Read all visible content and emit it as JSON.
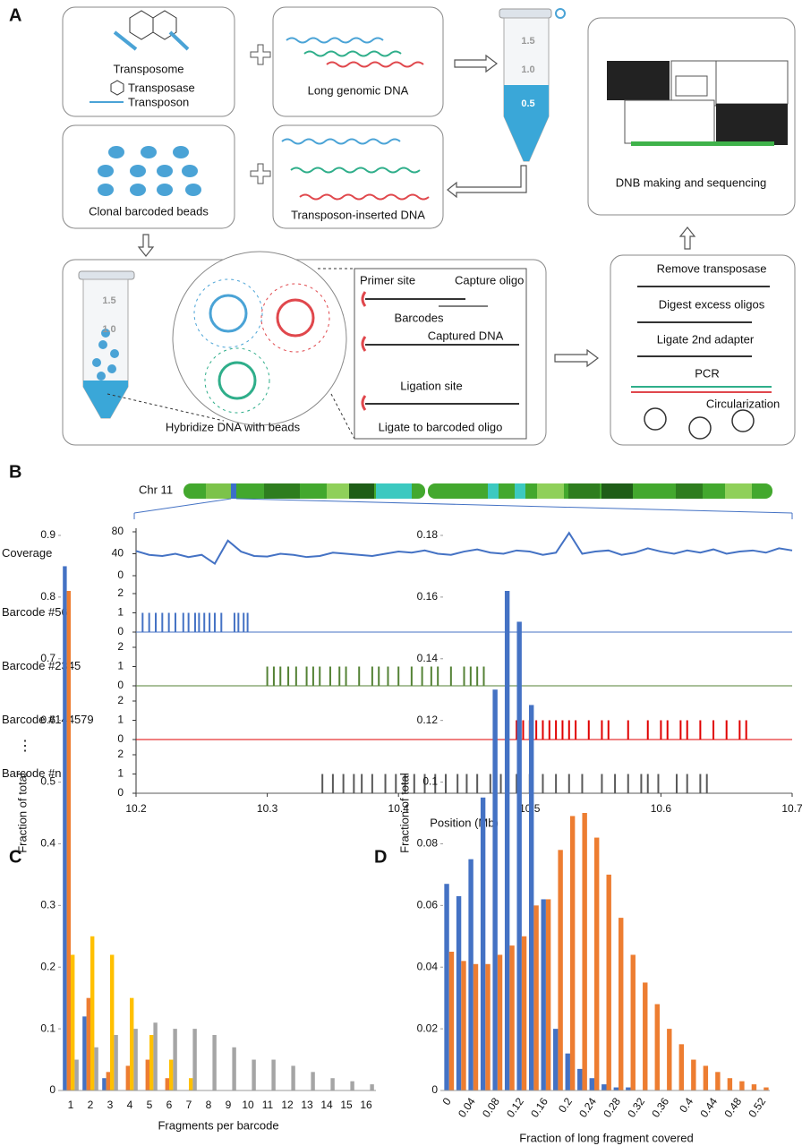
{
  "panel_labels": [
    "A",
    "B",
    "C",
    "D"
  ],
  "diagram": {
    "transposome": "Transposome",
    "transposase": "Transposase",
    "transposon": "Transposon",
    "long_dna": "Long genomic DNA",
    "tube_marks": [
      "1.5",
      "1.0",
      "0.5"
    ],
    "beads": "Clonal barcoded beads",
    "inserted_dna": "Transposon-inserted DNA",
    "sequencing": "DNB making and sequencing",
    "hybridize": "Hybridize DNA with beads",
    "zoom": [
      "Primer site",
      "Capture oligo",
      "Barcodes",
      "Captured DNA",
      "Ligation site",
      "Ligate to barcoded oligo"
    ],
    "steps": [
      "Remove transposase",
      "Digest excess oligos",
      "Ligate 2nd adapter",
      "PCR",
      "Circularization"
    ]
  },
  "chart_data": [
    {
      "type": "track",
      "chromosome": "Chr 11",
      "xlabel": "Position (Mb)",
      "xlim": [
        10.2,
        10.7
      ],
      "xticks": [
        10.2,
        10.3,
        10.4,
        10.5,
        10.6,
        10.7
      ],
      "ellipsis": "⋮",
      "series": [
        {
          "name": "Coverage",
          "color": "#4472c4",
          "style": "line",
          "ylim": [
            0,
            80
          ],
          "yticks": [
            0,
            40,
            80
          ],
          "x": [
            10.2,
            10.21,
            10.22,
            10.23,
            10.24,
            10.25,
            10.26,
            10.27,
            10.28,
            10.29,
            10.3,
            10.31,
            10.32,
            10.33,
            10.34,
            10.35,
            10.36,
            10.37,
            10.38,
            10.39,
            10.4,
            10.41,
            10.42,
            10.43,
            10.44,
            10.45,
            10.46,
            10.47,
            10.48,
            10.49,
            10.5,
            10.51,
            10.52,
            10.53,
            10.54,
            10.55,
            10.56,
            10.57,
            10.58,
            10.59,
            10.6,
            10.61,
            10.62,
            10.63,
            10.64,
            10.65,
            10.66,
            10.67,
            10.68,
            10.69,
            10.7
          ],
          "values": [
            45,
            38,
            36,
            40,
            34,
            38,
            22,
            64,
            44,
            36,
            35,
            40,
            38,
            34,
            36,
            42,
            40,
            38,
            36,
            40,
            44,
            42,
            46,
            40,
            38,
            44,
            48,
            42,
            40,
            46,
            44,
            38,
            42,
            78,
            40,
            44,
            46,
            38,
            42,
            50,
            44,
            40,
            46,
            42,
            48,
            40,
            44,
            46,
            42,
            50,
            46
          ]
        },
        {
          "name": "Barcode #56",
          "color": "#4472c4",
          "style": "ticks",
          "ylim": [
            0,
            2
          ],
          "yticks": [
            0,
            1,
            2
          ],
          "x": [
            10.205,
            10.21,
            10.215,
            10.22,
            10.225,
            10.23,
            10.236,
            10.24,
            10.245,
            10.248,
            10.252,
            10.256,
            10.26,
            10.265,
            10.275,
            10.278,
            10.282,
            10.285
          ],
          "values": [
            1,
            1,
            1,
            1,
            1,
            1,
            1,
            1,
            1,
            1,
            1,
            1,
            1,
            1,
            1,
            1,
            1,
            1
          ]
        },
        {
          "name": "Barcode #2345",
          "color": "#548235",
          "style": "ticks",
          "ylim": [
            0,
            2
          ],
          "yticks": [
            0,
            1,
            2
          ],
          "x": [
            10.3,
            10.305,
            10.31,
            10.316,
            10.322,
            10.33,
            10.335,
            10.34,
            10.348,
            10.355,
            10.36,
            10.37,
            10.38,
            10.385,
            10.392,
            10.4,
            10.41,
            10.418,
            10.425,
            10.43,
            10.44,
            10.45,
            10.455,
            10.46,
            10.465
          ],
          "values": [
            1,
            1,
            1,
            1,
            1,
            1,
            1,
            1,
            1,
            1,
            1,
            1,
            1,
            1,
            1,
            1,
            1,
            1,
            1,
            1,
            1,
            1,
            1,
            1,
            1
          ]
        },
        {
          "name": "Barcode #144579",
          "color": "#e00000",
          "style": "ticks",
          "ylim": [
            0,
            2
          ],
          "yticks": [
            0,
            1,
            2
          ],
          "x": [
            10.49,
            10.495,
            10.5,
            10.505,
            10.51,
            10.515,
            10.52,
            10.525,
            10.53,
            10.535,
            10.545,
            10.555,
            10.56,
            10.575,
            10.59,
            10.6,
            10.605,
            10.615,
            10.62,
            10.63,
            10.64,
            10.65,
            10.66,
            10.665
          ],
          "values": [
            1,
            1,
            1,
            1,
            1,
            1,
            1,
            1,
            1,
            1,
            1,
            1,
            1,
            1,
            1,
            1,
            1,
            1,
            1,
            1,
            1,
            1,
            1,
            1
          ]
        },
        {
          "name": "Barcode #n",
          "color": "#595959",
          "style": "ticks",
          "ylim": [
            0,
            2
          ],
          "yticks": [
            0,
            1,
            2
          ],
          "x": [
            10.342,
            10.35,
            10.358,
            10.366,
            10.372,
            10.38,
            10.39,
            10.398,
            10.405,
            10.412,
            10.42,
            10.428,
            10.436,
            10.445,
            10.452,
            10.46,
            10.47,
            10.478,
            10.49,
            10.5,
            10.51,
            10.52,
            10.53,
            10.54,
            10.555,
            10.565,
            10.575,
            10.585,
            10.59,
            10.598,
            10.612,
            10.62,
            10.63,
            10.635
          ],
          "values": [
            1,
            1,
            1,
            1,
            1,
            1,
            1,
            1,
            1,
            1,
            1,
            1,
            1,
            1,
            1,
            1,
            1,
            1,
            1,
            1,
            1,
            1,
            1,
            1,
            1,
            1,
            1,
            1,
            1,
            1,
            1,
            1,
            1,
            1
          ]
        }
      ]
    },
    {
      "type": "bar",
      "xlabel": "Fragments per barcode",
      "ylabel": "Fraction of total",
      "categories": [
        "1",
        "2",
        "3",
        "4",
        "5",
        "6",
        "7",
        "8",
        "9",
        "10",
        "11",
        "12",
        "13",
        "14",
        "15",
        "16"
      ],
      "ylim": [
        0,
        0.9
      ],
      "yticks": [
        0,
        0.1,
        0.2,
        0.3,
        0.4,
        0.5,
        0.6,
        0.7,
        0.8,
        0.9
      ],
      "series": [
        {
          "color": "#4472c4",
          "values": [
            0.85,
            0.12,
            0.02,
            0,
            0,
            0,
            0,
            0,
            0,
            0,
            0,
            0,
            0,
            0,
            0,
            0
          ]
        },
        {
          "color": "#ed7d31",
          "values": [
            0.81,
            0.15,
            0.03,
            0.04,
            0.05,
            0.02,
            0,
            0,
            0,
            0,
            0,
            0,
            0,
            0,
            0,
            0
          ]
        },
        {
          "color": "#ffc000",
          "values": [
            0.22,
            0.25,
            0.22,
            0.15,
            0.09,
            0.05,
            0.02,
            0,
            0,
            0,
            0,
            0,
            0,
            0,
            0,
            0
          ]
        },
        {
          "color": "#a5a5a5",
          "values": [
            0.05,
            0.07,
            0.09,
            0.1,
            0.11,
            0.1,
            0.1,
            0.09,
            0.07,
            0.05,
            0.05,
            0.04,
            0.03,
            0.02,
            0.015,
            0.01
          ]
        }
      ]
    },
    {
      "type": "bar",
      "xlabel": "Fraction of long fragment covered",
      "ylabel": "Fraction of total",
      "categories": [
        "0",
        null,
        "0.04",
        null,
        "0.08",
        null,
        "0.12",
        null,
        "0.16",
        null,
        "0.2",
        null,
        "0.24",
        null,
        "0.28",
        null,
        "0.32",
        null,
        "0.36",
        null,
        "0.4",
        null,
        "0.44",
        null,
        "0.48",
        null,
        "0.52"
      ],
      "ylim": [
        0,
        0.18
      ],
      "yticks": [
        0,
        0.02,
        0.04,
        0.06,
        0.08,
        0.1,
        0.12,
        0.14,
        0.16,
        0.18
      ],
      "series": [
        {
          "color": "#4472c4",
          "values": [
            0.067,
            0.063,
            0.075,
            0.095,
            0.13,
            0.162,
            0.152,
            0.125,
            0.062,
            0.02,
            0.012,
            0.007,
            0.004,
            0.002,
            0.001,
            0.001,
            0,
            0,
            0,
            0,
            0,
            0,
            0,
            0,
            0,
            0,
            0
          ]
        },
        {
          "color": "#ed7d31",
          "values": [
            0.045,
            0.042,
            0.041,
            0.041,
            0.044,
            0.047,
            0.05,
            0.06,
            0.062,
            0.078,
            0.089,
            0.09,
            0.082,
            0.07,
            0.056,
            0.044,
            0.035,
            0.028,
            0.02,
            0.015,
            0.01,
            0.008,
            0.006,
            0.004,
            0.003,
            0.002,
            0.001
          ]
        }
      ]
    }
  ]
}
